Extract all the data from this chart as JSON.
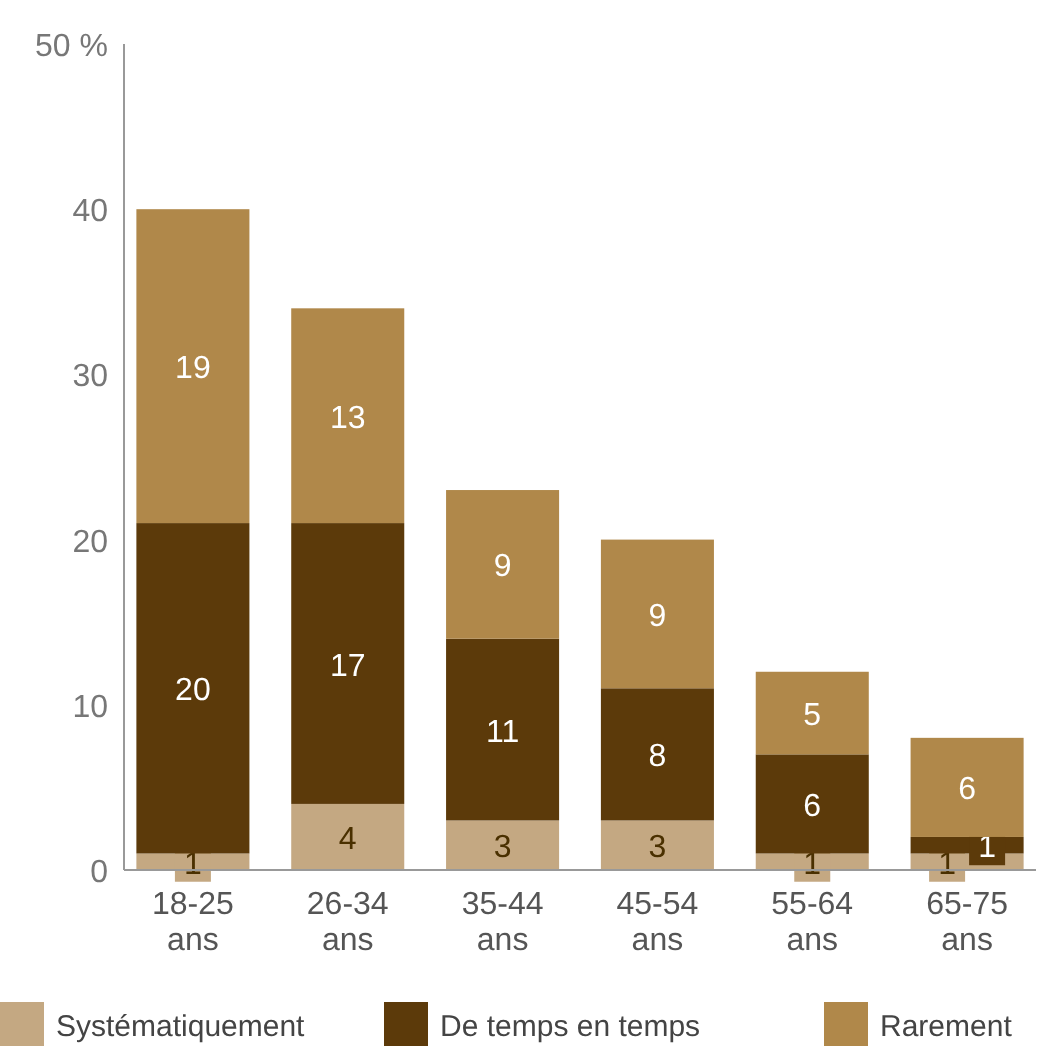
{
  "chart_data": {
    "type": "bar",
    "stacked": true,
    "categories": [
      "18-25 ans",
      "26-34 ans",
      "35-44 ans",
      "45-54 ans",
      "55-64 ans",
      "65-75 ans"
    ],
    "series": [
      {
        "name": "Systématiquement",
        "color": "#c4a882",
        "values": [
          1,
          4,
          3,
          3,
          1,
          1
        ]
      },
      {
        "name": "De temps en temps",
        "color": "#5c3a0a",
        "values": [
          20,
          17,
          11,
          8,
          6,
          1
        ]
      },
      {
        "name": "Rarement",
        "color": "#b0884a",
        "values": [
          19,
          13,
          9,
          9,
          5,
          6
        ]
      }
    ],
    "ylim": [
      0,
      50
    ],
    "yticks": [
      0,
      10,
      20,
      30,
      40,
      {
        "value": 50,
        "label": "50 %"
      }
    ],
    "grid": false,
    "legend": "bottom",
    "data_labels": true
  }
}
